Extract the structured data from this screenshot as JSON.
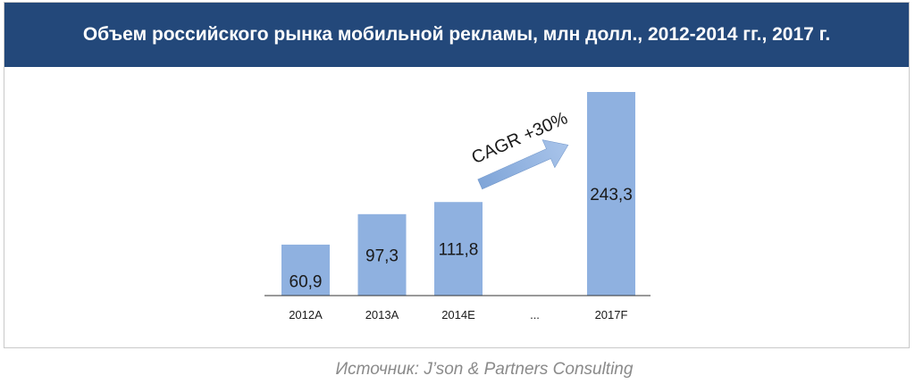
{
  "header": {
    "title": "Объем российского рынка мобильной рекламы, млн долл., 2012-2014 гг., 2017 г."
  },
  "footer": {
    "source": "Источник: J’son & Partners Consulting"
  },
  "colors": {
    "header_bg": "#23487a",
    "bar": "#8fb1e0",
    "arrow": "#8fb1e0",
    "axis": "#333333"
  },
  "chart_data": {
    "type": "bar",
    "title": "Объем российского рынка мобильной рекламы, млн долл., 2012-2014 гг., 2017 г.",
    "categories": [
      "2012A",
      "2013A",
      "2014E",
      "...",
      "2017F"
    ],
    "values": [
      60.9,
      97.3,
      111.8,
      null,
      243.3
    ],
    "value_labels": [
      "60,9",
      "97,3",
      "111,8",
      "",
      "243,3"
    ],
    "annotation": "CAGR +30%",
    "xlabel": "",
    "ylabel": "",
    "ylim": [
      0,
      243.3
    ],
    "grid": false,
    "legend": "none"
  }
}
